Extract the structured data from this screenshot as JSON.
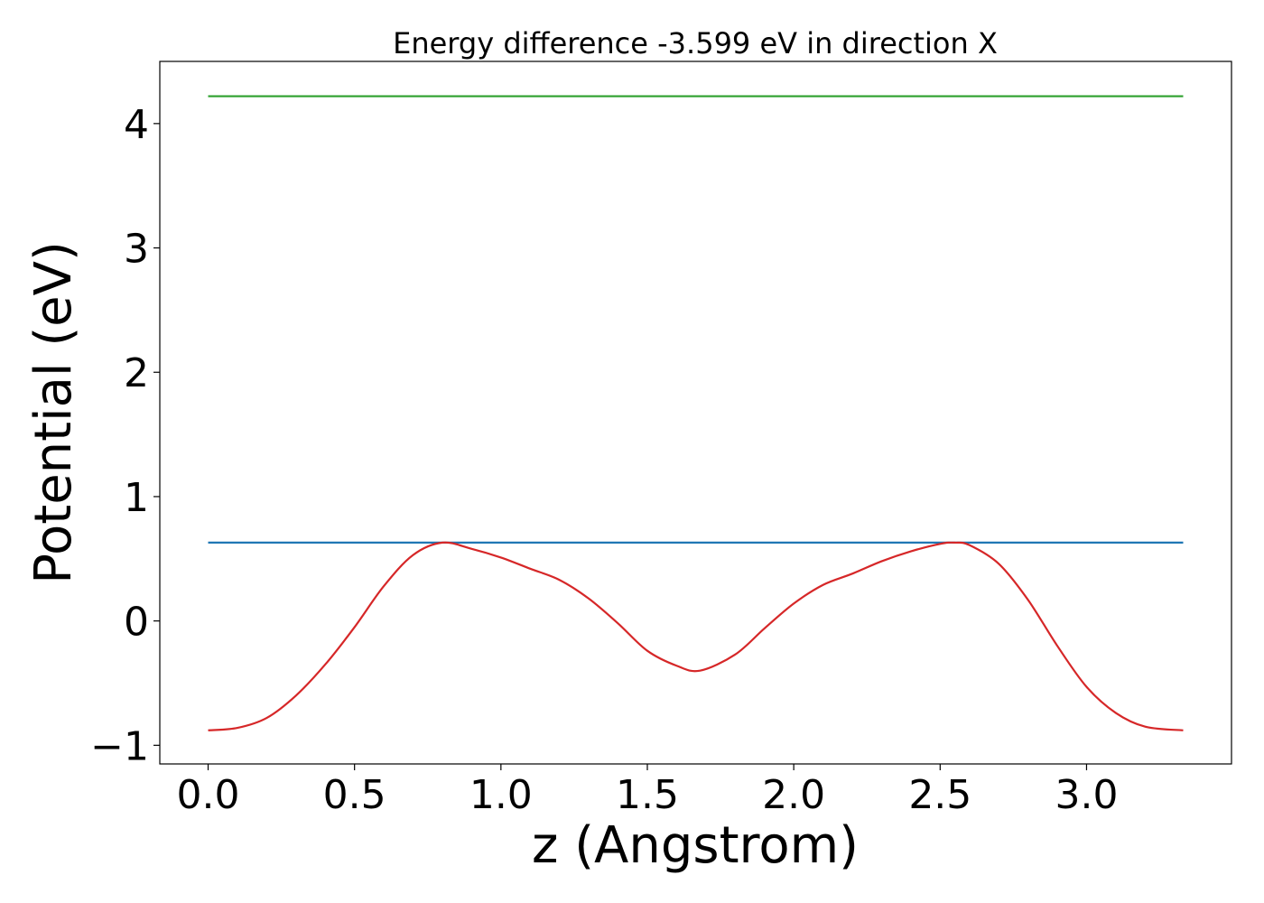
{
  "chart_data": {
    "type": "line",
    "title": "Energy difference -3.599 eV in direction X",
    "xlabel": "z (Angstrom)",
    "ylabel": "Potential (eV)",
    "xlim": [
      -0.165,
      3.495
    ],
    "ylim": [
      -1.15,
      4.5
    ],
    "x_ticks": [
      0.0,
      0.5,
      1.0,
      1.5,
      2.0,
      2.5,
      3.0
    ],
    "x_tick_labels": [
      "0.0",
      "0.5",
      "1.0",
      "1.5",
      "2.0",
      "2.5",
      "3.0"
    ],
    "y_ticks": [
      -1,
      0,
      1,
      2,
      3,
      4
    ],
    "y_tick_labels": [
      "−1",
      "0",
      "1",
      "2",
      "3",
      "4"
    ],
    "grid": false,
    "series": [
      {
        "color": "#2ca02c",
        "x": [
          0.0,
          3.33
        ],
        "y": [
          4.22,
          4.22
        ]
      },
      {
        "color": "#1f77b4",
        "x": [
          0.0,
          3.33
        ],
        "y": [
          0.63,
          0.63
        ]
      },
      {
        "color": "#d62728",
        "x": [
          0.0,
          0.1,
          0.2,
          0.3,
          0.4,
          0.5,
          0.6,
          0.7,
          0.8,
          0.9,
          1.0,
          1.1,
          1.2,
          1.3,
          1.4,
          1.5,
          1.6,
          1.68,
          1.8,
          1.9,
          2.0,
          2.1,
          2.2,
          2.3,
          2.4,
          2.5,
          2.55,
          2.6,
          2.7,
          2.8,
          2.9,
          3.0,
          3.1,
          3.2,
          3.33
        ],
        "y": [
          -0.88,
          -0.86,
          -0.78,
          -0.6,
          -0.35,
          -0.05,
          0.28,
          0.53,
          0.63,
          0.58,
          0.51,
          0.42,
          0.33,
          0.18,
          -0.02,
          -0.24,
          -0.36,
          -0.4,
          -0.27,
          -0.06,
          0.14,
          0.29,
          0.38,
          0.48,
          0.56,
          0.62,
          0.63,
          0.61,
          0.46,
          0.17,
          -0.2,
          -0.53,
          -0.74,
          -0.85,
          -0.88
        ]
      }
    ]
  }
}
